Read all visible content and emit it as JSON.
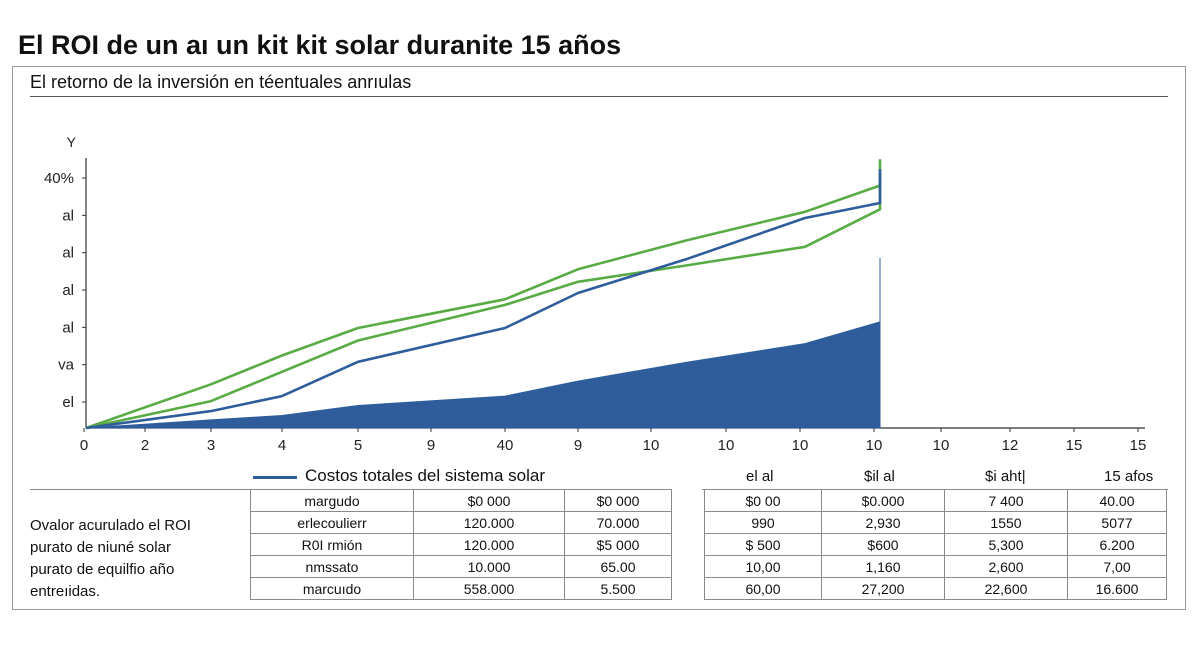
{
  "title": "El ROI de un aı un kit kit solar duranite 15 años",
  "subtitle": "El retorno de la inversión en téentuales anrıulas",
  "chart_data": {
    "type": "line",
    "y_axis_title": "Y",
    "y_tick_labels": [
      "40%",
      "al",
      "al",
      "al",
      "al",
      "va",
      "el"
    ],
    "x_tick_labels": [
      "0",
      "2",
      "3",
      "4",
      "5",
      "9",
      "40",
      "9",
      "10",
      "10",
      "10",
      "10",
      "10",
      "12",
      "15",
      "15"
    ],
    "x": [
      0,
      2,
      3,
      4,
      5,
      6,
      7,
      8,
      9,
      10
    ],
    "xlim": [
      0,
      15
    ],
    "ylim": [
      0,
      40
    ],
    "series": [
      {
        "color": "#59ab45",
        "values": [
          0,
          7.0,
          11.6,
          16.0,
          20.6,
          25.4,
          30.0,
          34.6,
          38.8,
          43.0
        ]
      },
      {
        "color": "#59ab45",
        "values": [
          0,
          4.3,
          9.0,
          14.0,
          19.7,
          23.4,
          26.0,
          29.0,
          35.0,
          40.8
        ]
      },
      {
        "color": "#2f5d9c",
        "values": [
          0,
          2.7,
          5.1,
          10.6,
          16.0,
          21.6,
          27.0,
          33.6,
          36.0,
          41.4
        ]
      },
      {
        "color": "#2f5d9c",
        "values": [
          0,
          1.3,
          2.0,
          3.6,
          5.1,
          7.5,
          10.5,
          13.5,
          17.0,
          27.2
        ],
        "fill": true
      }
    ],
    "legend": [
      {
        "label": "Costos totales del sistema solar",
        "color": "#2f5d9c"
      }
    ],
    "grid": false
  },
  "table_headers": [
    "el al",
    "$il al",
    "$i aht|",
    "15 afos"
  ],
  "side_note": [
    "Ovalor acurulado el ROI",
    "purato de niuné solar",
    "purato de equilfio año",
    "entreıidas."
  ],
  "table_left": [
    [
      "margudo",
      "$0 000",
      "$0 000"
    ],
    [
      "erlecoulierr",
      "120.000",
      "70.000"
    ],
    [
      "R0I rmión",
      "120.000",
      "$5 000"
    ],
    [
      "nmssato",
      "10.000",
      "65.00"
    ],
    [
      "marcuıdo",
      "558.000",
      "5.500"
    ]
  ],
  "table_right": [
    [
      "$0 00",
      "$0.000",
      "7 400",
      "40.00"
    ],
    [
      "990",
      "2,930",
      "1550",
      "5077"
    ],
    [
      "$ 500",
      "$600",
      "5,300",
      "6.200"
    ],
    [
      "10,00",
      "1,160",
      "2,600",
      "7,00"
    ],
    [
      "60,00",
      "27,200",
      "22,600",
      "16.600"
    ]
  ]
}
